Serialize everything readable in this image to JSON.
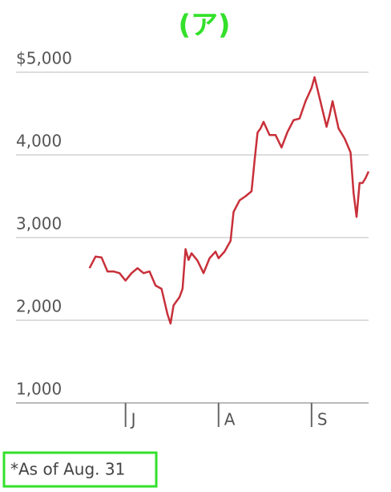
{
  "chart_data": {
    "type": "line",
    "title": "(ア)",
    "annotation": "*As of Aug. 31",
    "x": [
      -12,
      -10,
      -8,
      -6,
      -4,
      -2,
      0,
      2,
      4,
      6,
      8,
      10,
      12,
      14,
      15,
      16,
      18,
      19,
      20,
      21,
      22,
      24,
      26,
      28,
      30,
      31,
      33,
      35,
      36,
      38,
      40,
      42,
      43,
      44,
      45,
      46,
      48,
      50,
      52,
      54,
      56,
      58,
      60,
      62,
      63,
      64,
      65,
      67,
      68,
      69,
      71,
      73,
      75,
      76,
      77,
      78,
      79,
      80,
      81
    ],
    "series": [
      {
        "color": "#c8303a",
        "values": [
          2630,
          2770,
          2760,
          2590,
          2590,
          2570,
          2480,
          2570,
          2630,
          2570,
          2590,
          2420,
          2380,
          2070,
          1960,
          2180,
          2280,
          2380,
          2860,
          2730,
          2810,
          2720,
          2570,
          2750,
          2830,
          2750,
          2830,
          2960,
          3310,
          3450,
          3500,
          3560,
          3930,
          4270,
          4320,
          4400,
          4240,
          4240,
          4090,
          4280,
          4420,
          4440,
          4650,
          4810,
          4940,
          4790,
          4640,
          4340,
          4480,
          4650,
          4320,
          4200,
          4030,
          3540,
          3250,
          3660,
          3660,
          3720,
          3800
        ]
      }
    ],
    "xlim": [
      -36.5,
      81
    ],
    "ylim": [
      1000,
      5000
    ],
    "xticks": [
      {
        "value": 0,
        "label": "J"
      },
      {
        "value": 31,
        "label": "A"
      },
      {
        "value": 62,
        "label": "S"
      }
    ],
    "yticks": [
      {
        "value": 1000,
        "label": "1,000"
      },
      {
        "value": 2000,
        "label": "2,000"
      },
      {
        "value": 3000,
        "label": "3,000"
      },
      {
        "value": 4000,
        "label": "4,000"
      },
      {
        "value": 5000,
        "label": "$5,000"
      }
    ],
    "grid": true
  }
}
